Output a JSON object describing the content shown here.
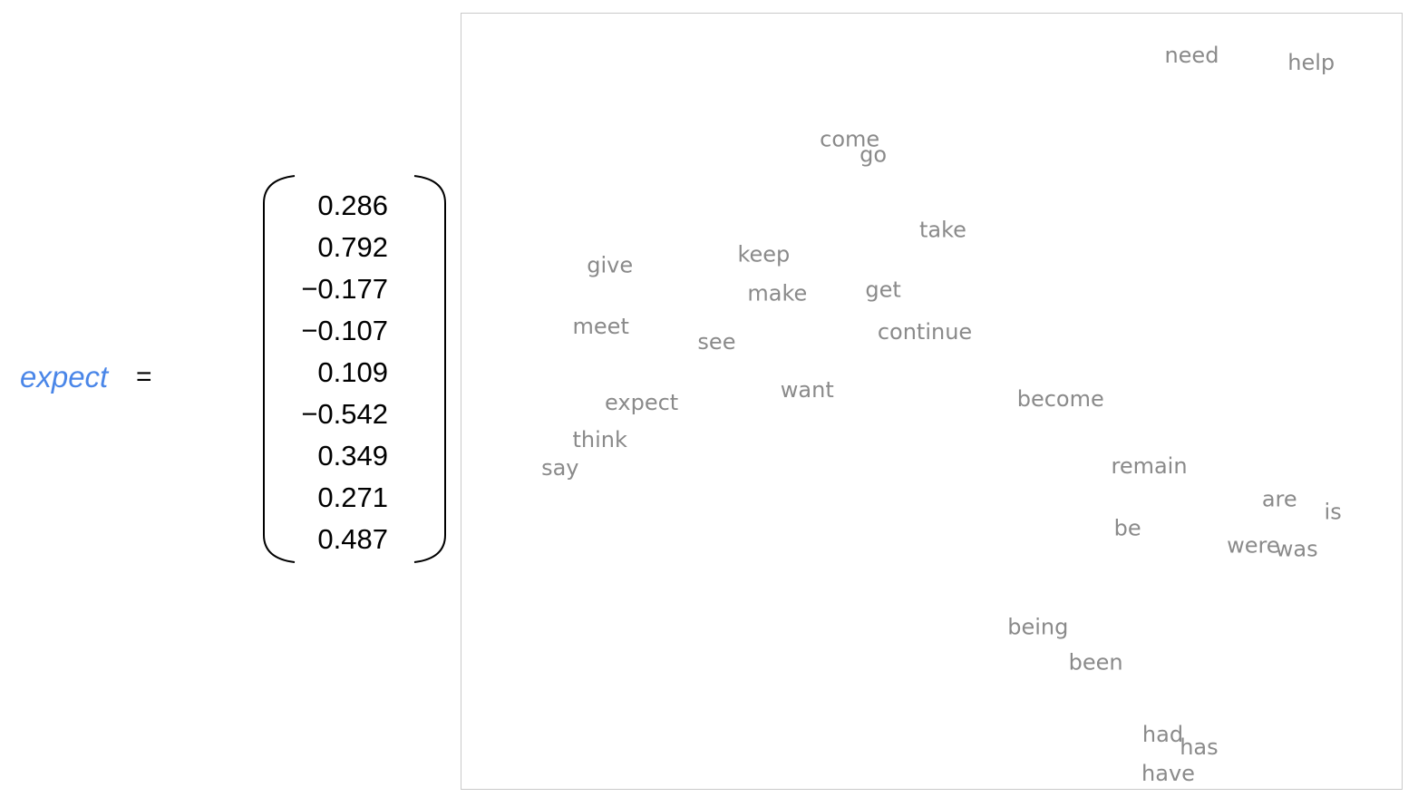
{
  "equation": {
    "word": "expect",
    "equals": "=",
    "vector": [
      "0.286",
      "0.792",
      "−0.177",
      "−0.107",
      "0.109",
      "−0.542",
      "0.349",
      "0.271",
      "0.487"
    ]
  },
  "chart_data": {
    "type": "scatter",
    "title": "",
    "xlabel": "",
    "ylabel": "",
    "grid": false,
    "legend": "none",
    "xlim": [
      0,
      1039
    ],
    "ylim": [
      0,
      857
    ],
    "points": [
      {
        "label": "need",
        "x": 807,
        "y": 47
      },
      {
        "label": "help",
        "x": 939,
        "y": 55
      },
      {
        "label": "come",
        "x": 429,
        "y": 140
      },
      {
        "label": "go",
        "x": 455,
        "y": 157
      },
      {
        "label": "take",
        "x": 532,
        "y": 240
      },
      {
        "label": "keep",
        "x": 334,
        "y": 267
      },
      {
        "label": "give",
        "x": 164,
        "y": 279
      },
      {
        "label": "make",
        "x": 349,
        "y": 310
      },
      {
        "label": "get",
        "x": 466,
        "y": 306
      },
      {
        "label": "meet",
        "x": 154,
        "y": 347
      },
      {
        "label": "continue",
        "x": 512,
        "y": 353
      },
      {
        "label": "see",
        "x": 282,
        "y": 364
      },
      {
        "label": "want",
        "x": 382,
        "y": 417
      },
      {
        "label": "become",
        "x": 662,
        "y": 427
      },
      {
        "label": "expect",
        "x": 199,
        "y": 431
      },
      {
        "label": "think",
        "x": 153,
        "y": 472
      },
      {
        "label": "say",
        "x": 109,
        "y": 503
      },
      {
        "label": "remain",
        "x": 760,
        "y": 501
      },
      {
        "label": "are",
        "x": 904,
        "y": 538
      },
      {
        "label": "is",
        "x": 963,
        "y": 552
      },
      {
        "label": "be",
        "x": 736,
        "y": 570
      },
      {
        "label": "were",
        "x": 875,
        "y": 589
      },
      {
        "label": "was",
        "x": 923,
        "y": 593
      },
      {
        "label": "being",
        "x": 637,
        "y": 679
      },
      {
        "label": "been",
        "x": 701,
        "y": 718
      },
      {
        "label": "had",
        "x": 775,
        "y": 798
      },
      {
        "label": "has",
        "x": 815,
        "y": 812
      },
      {
        "label": "have",
        "x": 781,
        "y": 841
      }
    ]
  }
}
